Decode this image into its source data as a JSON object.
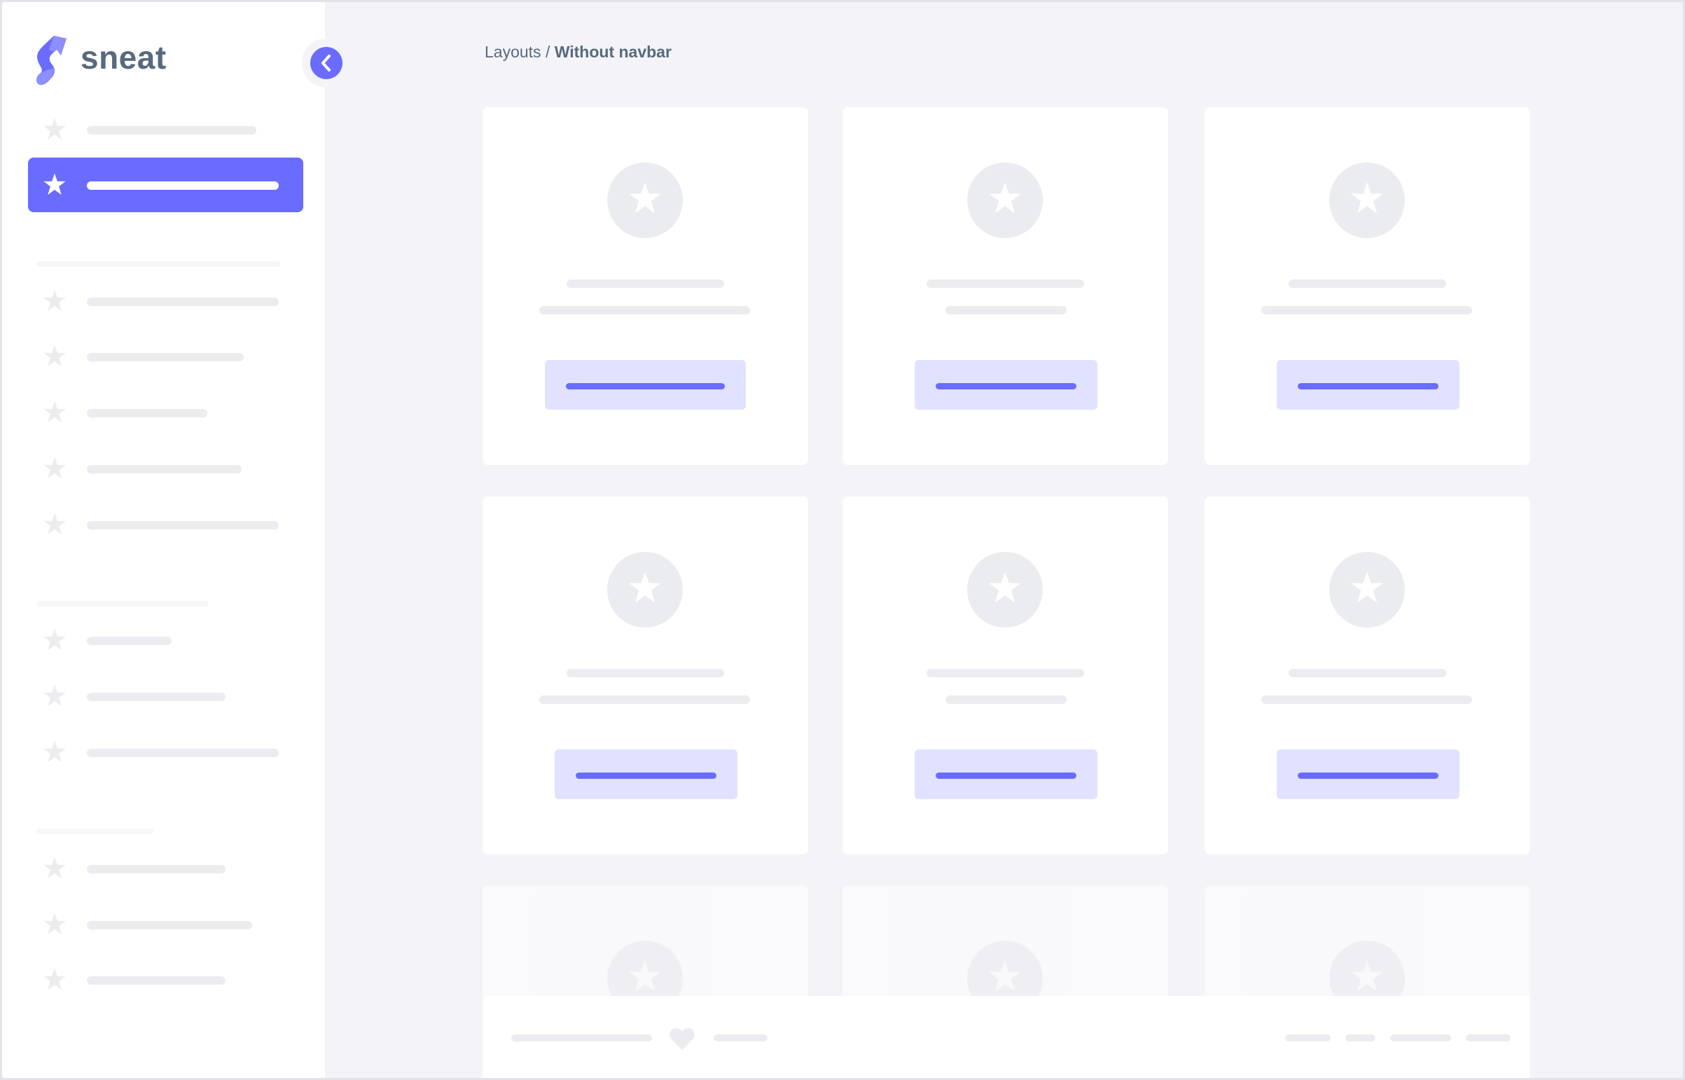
{
  "sidebar": {
    "brand": "sneat",
    "brand_color": "#696cff",
    "toggle_icon": "chevron-left-icon",
    "items_icon": "star-icon",
    "active_index": 1
  },
  "breadcrumb": {
    "parent": "Layouts",
    "separator": " / ",
    "current": "Without navbar"
  },
  "colors": {
    "primary": "#696cff",
    "placeholder": "#ebecef",
    "background": "#f4f4f8",
    "text": "#566a7f"
  },
  "footer": {
    "icon": "heart-icon"
  }
}
